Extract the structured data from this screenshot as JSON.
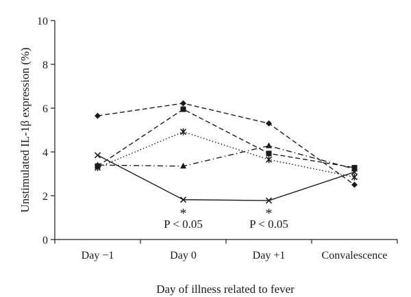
{
  "chart_data": {
    "type": "line",
    "title": "",
    "xlabel": "Day of illness related to fever",
    "ylabel": "Unstimulated IL-1β expression (%)",
    "categories": [
      "Day −1",
      "Day 0",
      "Day +1",
      "Convalescence"
    ],
    "ylim": [
      0,
      10
    ],
    "yticks": [
      0,
      2,
      4,
      6,
      8,
      10
    ],
    "grid": false,
    "series": [
      {
        "marker": "diamond",
        "line_style": "dashed",
        "values": [
          5.65,
          6.22,
          5.3,
          2.5
        ]
      },
      {
        "marker": "square",
        "line_style": "dashed",
        "values": [
          3.35,
          5.95,
          3.93,
          3.28
        ]
      },
      {
        "marker": "star",
        "line_style": "dotted",
        "values": [
          3.28,
          4.92,
          3.65,
          2.85
        ]
      },
      {
        "marker": "triangle",
        "line_style": "dashdot",
        "values": [
          3.4,
          3.35,
          4.28,
          3.22
        ]
      },
      {
        "marker": "x",
        "line_style": "solid",
        "values": [
          3.85,
          1.82,
          1.78,
          3.08
        ]
      }
    ],
    "annotations": [
      {
        "category": "Day 0",
        "star": "*",
        "text": "P < 0.05"
      },
      {
        "category": "Day +1",
        "star": "*",
        "text": "P < 0.05"
      }
    ]
  }
}
